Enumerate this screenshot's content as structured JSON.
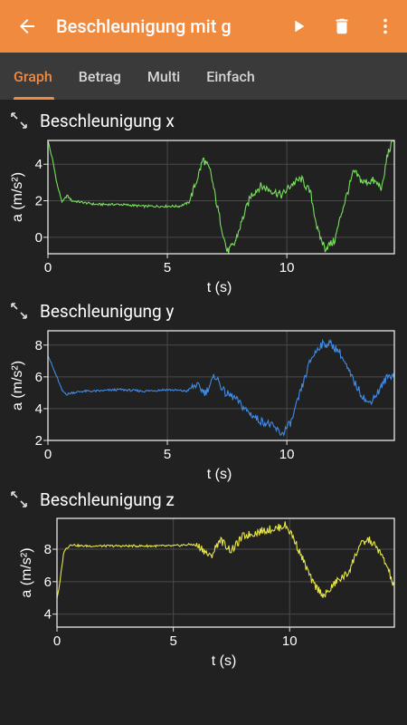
{
  "app": {
    "title": "Beschleunigung mit g",
    "accent": "#ef8a3f",
    "icons": {
      "back": "arrow-left-icon",
      "play": "play-icon",
      "delete": "trash-icon",
      "menu": "more-vert-icon"
    }
  },
  "tabs": [
    {
      "label": "Graph",
      "active": true
    },
    {
      "label": "Betrag",
      "active": false
    },
    {
      "label": "Multi",
      "active": false
    },
    {
      "label": "Einfach",
      "active": false
    }
  ],
  "panels": [
    {
      "title": "Beschleunigung x",
      "icon": "expand-icon"
    },
    {
      "title": "Beschleunigung y",
      "icon": "expand-icon"
    },
    {
      "title": "Beschleunigung z",
      "icon": "expand-icon"
    }
  ],
  "chart_data": [
    {
      "type": "line",
      "title": "Beschleunigung x",
      "xlabel": "t (s)",
      "ylabel": "a (m/s²)",
      "xlim": [
        0,
        14.5
      ],
      "ylim": [
        -0.9,
        5.3
      ],
      "xticks": [
        0,
        5,
        10
      ],
      "yticks": [
        0,
        2,
        4
      ],
      "grid": true,
      "color": "#76e05a",
      "x": [
        0,
        0.2,
        0.4,
        0.6,
        0.8,
        1,
        1.5,
        2,
        3,
        4,
        5,
        5.5,
        5.9,
        6.2,
        6.5,
        6.8,
        7.1,
        7.5,
        7.8,
        8.2,
        8.5,
        8.9,
        9.3,
        9.8,
        10.2,
        10.6,
        11,
        11.3,
        11.6,
        12,
        12.3,
        12.8,
        13.2,
        13.6,
        14,
        14.2,
        14.5
      ],
      "y": [
        5.3,
        4.2,
        2.8,
        1.9,
        2.3,
        2.0,
        1.9,
        1.8,
        1.8,
        1.7,
        1.7,
        1.7,
        1.9,
        3.0,
        4.3,
        3.6,
        1.6,
        -0.8,
        -0.4,
        1.2,
        2.3,
        2.8,
        2.6,
        2.3,
        2.9,
        3.2,
        2.4,
        0.3,
        -0.6,
        -0.2,
        1.4,
        3.6,
        3.0,
        3.1,
        2.7,
        4.5,
        5.4
      ]
    },
    {
      "type": "line",
      "title": "Beschleunigung y",
      "xlabel": "t (s)",
      "ylabel": "a (m/s²)",
      "xlim": [
        0,
        14.5
      ],
      "ylim": [
        2,
        8.9
      ],
      "xticks": [
        0,
        5,
        10
      ],
      "yticks": [
        2,
        4,
        6,
        8
      ],
      "grid": true,
      "color": "#3f8be6",
      "x": [
        0,
        0.2,
        0.4,
        0.6,
        0.8,
        1,
        1.5,
        2,
        3,
        4,
        5,
        5.8,
        6.2,
        6.6,
        7,
        7.4,
        7.8,
        8.3,
        8.8,
        9.3,
        9.8,
        10.2,
        10.6,
        11,
        11.4,
        11.8,
        12.2,
        12.6,
        13,
        13.4,
        13.8,
        14.2,
        14.5
      ],
      "y": [
        7.4,
        6.6,
        5.9,
        5.1,
        4.9,
        5.0,
        5.1,
        5.1,
        5.2,
        5.1,
        5.2,
        5.1,
        5.5,
        5.0,
        6.1,
        5.0,
        4.7,
        3.9,
        3.3,
        3.0,
        2.4,
        3.2,
        5.2,
        7.1,
        8.0,
        8.1,
        7.6,
        6.3,
        5.2,
        4.3,
        5.0,
        6.0,
        6.2
      ]
    },
    {
      "type": "line",
      "title": "Beschleunigung z",
      "xlabel": "t (s)",
      "ylabel": "a (m/s²)",
      "xlim": [
        0,
        14.5
      ],
      "ylim": [
        3.2,
        9.9
      ],
      "xticks": [
        0,
        5,
        10
      ],
      "yticks": [
        4,
        6,
        8
      ],
      "grid": true,
      "color": "#e6e64a",
      "x": [
        0,
        0.1,
        0.3,
        0.6,
        1,
        2,
        3,
        4,
        5,
        5.8,
        6.2,
        6.6,
        7,
        7.5,
        8,
        8.5,
        9,
        9.5,
        9.8,
        10.1,
        10.5,
        11,
        11.5,
        12,
        12.5,
        13,
        13.4,
        13.8,
        14.2,
        14.5
      ],
      "y": [
        5.0,
        5.7,
        7.9,
        8.3,
        8.2,
        8.2,
        8.2,
        8.2,
        8.2,
        8.3,
        8.1,
        7.5,
        8.6,
        7.9,
        8.8,
        9.0,
        9.2,
        9.3,
        9.5,
        8.9,
        7.6,
        5.9,
        5.1,
        6.0,
        6.5,
        8.2,
        8.6,
        8.0,
        6.9,
        5.6
      ]
    }
  ]
}
